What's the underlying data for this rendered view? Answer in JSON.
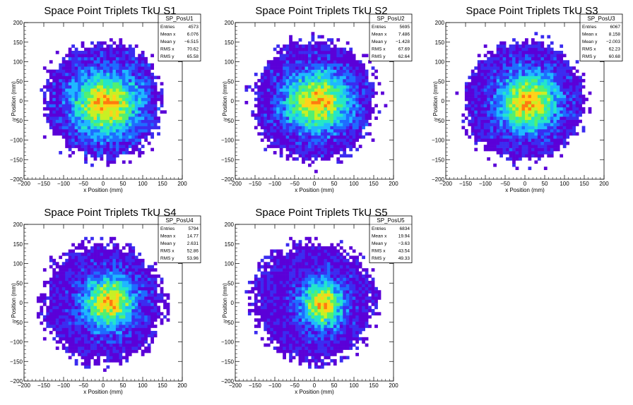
{
  "colors": {
    "palette": [
      "#5b00d8",
      "#3b2cf0",
      "#1e6cff",
      "#1fb8ff",
      "#24e6c8",
      "#52f070",
      "#c8f024",
      "#ffd21a",
      "#ff7a10",
      "#ff1010"
    ],
    "frame": "#000000",
    "background": "#ffffff"
  },
  "chart_data": [
    {
      "type": "heatmap",
      "title": "Space Point Triplets TkU S1",
      "xlabel": "x Position (mm)",
      "ylabel": "y Position (mm)",
      "xlim": [
        -200,
        200
      ],
      "ylim": [
        -200,
        200
      ],
      "xticks": [
        "−200",
        "−150",
        "−100",
        "−50",
        "0",
        "50",
        "100",
        "150",
        "200"
      ],
      "yticks": [
        "−200",
        "−150",
        "−100",
        "−50",
        "0",
        "50",
        "100",
        "150",
        "200"
      ],
      "stats": {
        "name": "SP_PosU1",
        "rows": [
          [
            "Entries",
            "4573"
          ],
          [
            "Mean x",
            "6.076"
          ],
          [
            "Mean y",
            "−6.515"
          ],
          [
            "RMS x",
            "70.62"
          ],
          [
            "RMS y",
            "65.58"
          ]
        ]
      },
      "entries": 4573,
      "mean_x": 6.076,
      "mean_y": -6.515,
      "rms_x": 70.62,
      "rms_y": 65.58,
      "radius": 150,
      "bin_width": 8
    },
    {
      "type": "heatmap",
      "title": "Space Point Triplets TkU S2",
      "xlabel": "x Position (mm)",
      "ylabel": "y Position (mm)",
      "xlim": [
        -200,
        200
      ],
      "ylim": [
        -200,
        200
      ],
      "xticks": [
        "−200",
        "−150",
        "−100",
        "−50",
        "0",
        "50",
        "100",
        "150",
        "200"
      ],
      "yticks": [
        "−200",
        "−150",
        "−100",
        "−50",
        "0",
        "50",
        "100",
        "150",
        "200"
      ],
      "stats": {
        "name": "SP_PosU2",
        "rows": [
          [
            "Entries",
            "5695"
          ],
          [
            "Mean x",
            "7.486"
          ],
          [
            "Mean y",
            "−1.428"
          ],
          [
            "RMS x",
            "67.69"
          ],
          [
            "RMS y",
            "62.64"
          ]
        ]
      },
      "entries": 5695,
      "mean_x": 7.486,
      "mean_y": -1.428,
      "rms_x": 67.69,
      "rms_y": 62.64,
      "radius": 155,
      "bin_width": 8
    },
    {
      "type": "heatmap",
      "title": "Space Point Triplets TkU S3",
      "xlabel": "x Position (mm)",
      "ylabel": "y Position (mm)",
      "xlim": [
        -200,
        200
      ],
      "ylim": [
        -200,
        200
      ],
      "xticks": [
        "−200",
        "−150",
        "−100",
        "−50",
        "0",
        "50",
        "100",
        "150",
        "200"
      ],
      "yticks": [
        "−200",
        "−150",
        "−100",
        "−50",
        "0",
        "50",
        "100",
        "150",
        "200"
      ],
      "stats": {
        "name": "SP_PosU3",
        "rows": [
          [
            "Entries",
            "6067"
          ],
          [
            "Mean x",
            "8.158"
          ],
          [
            "Mean y",
            "−2.003"
          ],
          [
            "RMS x",
            "62.23"
          ],
          [
            "RMS y",
            "60.68"
          ]
        ]
      },
      "entries": 6067,
      "mean_x": 8.158,
      "mean_y": -2.003,
      "rms_x": 62.23,
      "rms_y": 60.68,
      "radius": 155,
      "bin_width": 8
    },
    {
      "type": "heatmap",
      "title": "Space Point Triplets TkU S4",
      "xlabel": "x Position (mm)",
      "ylabel": "y Position (mm)",
      "xlim": [
        -200,
        200
      ],
      "ylim": [
        -200,
        200
      ],
      "xticks": [
        "−200",
        "−150",
        "−100",
        "−50",
        "0",
        "50",
        "100",
        "150",
        "200"
      ],
      "yticks": [
        "−200",
        "−150",
        "−100",
        "−50",
        "0",
        "50",
        "100",
        "150",
        "200"
      ],
      "stats": {
        "name": "SP_PosU4",
        "rows": [
          [
            "Entries",
            "5794"
          ],
          [
            "Mean x",
            "14.77"
          ],
          [
            "Mean y",
            "2.631"
          ],
          [
            "RMS x",
            "52.86"
          ],
          [
            "RMS y",
            "53.96"
          ]
        ]
      },
      "entries": 5794,
      "mean_x": 14.77,
      "mean_y": 2.631,
      "rms_x": 52.86,
      "rms_y": 53.96,
      "radius": 150,
      "bin_width": 8
    },
    {
      "type": "heatmap",
      "title": "Space Point Triplets TkU S5",
      "xlabel": "x Position (mm)",
      "ylabel": "y Position (mm)",
      "xlim": [
        -200,
        200
      ],
      "ylim": [
        -200,
        200
      ],
      "xticks": [
        "−200",
        "−150",
        "−100",
        "−50",
        "0",
        "50",
        "100",
        "150",
        "200"
      ],
      "yticks": [
        "−200",
        "−150",
        "−100",
        "−50",
        "0",
        "50",
        "100",
        "150",
        "200"
      ],
      "stats": {
        "name": "SP_PosU5",
        "rows": [
          [
            "Entries",
            "6834"
          ],
          [
            "Mean x",
            "19.94"
          ],
          [
            "Mean y",
            "−3.63"
          ],
          [
            "RMS x",
            "43.54"
          ],
          [
            "RMS y",
            "49.33"
          ]
        ]
      },
      "entries": 6834,
      "mean_x": 19.94,
      "mean_y": -3.63,
      "rms_x": 43.54,
      "rms_y": 49.33,
      "radius": 150,
      "bin_width": 8
    }
  ]
}
